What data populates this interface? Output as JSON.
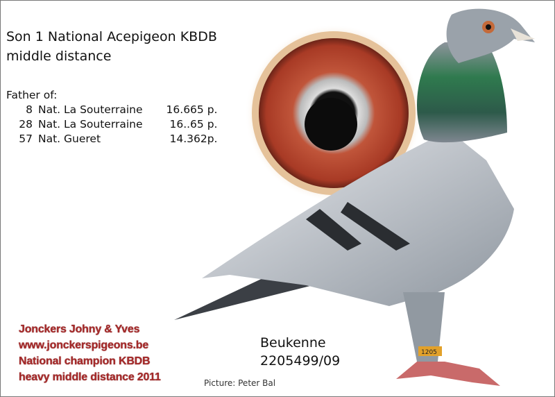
{
  "headline": {
    "line1": "Son 1 National Acepigeon KBDB",
    "line2": "middle distance"
  },
  "father_of": {
    "label": "Father of:",
    "results": [
      {
        "place": "8",
        "race": "Nat. La Souterraine",
        "points": "16.665 p."
      },
      {
        "place": "28",
        "race": "Nat. La Souterraine",
        "points": "16..65 p."
      },
      {
        "place": "57",
        "race": "Nat. Gueret",
        "points": "14.362p."
      }
    ]
  },
  "owner": {
    "name": "Jonckers Johny & Yves",
    "website": "www.jonckerspigeons.be",
    "title1": "National champion KBDB",
    "title2": "heavy middle distance 2011"
  },
  "bird": {
    "name": "Beukenne",
    "ring": "2205499/09",
    "ring_tag": "1205"
  },
  "credit": "Picture: Peter Bal",
  "colors": {
    "owner_text": "#a52a2a",
    "eye_iris": "#b8452e",
    "plumage": "#9aa3ad"
  }
}
